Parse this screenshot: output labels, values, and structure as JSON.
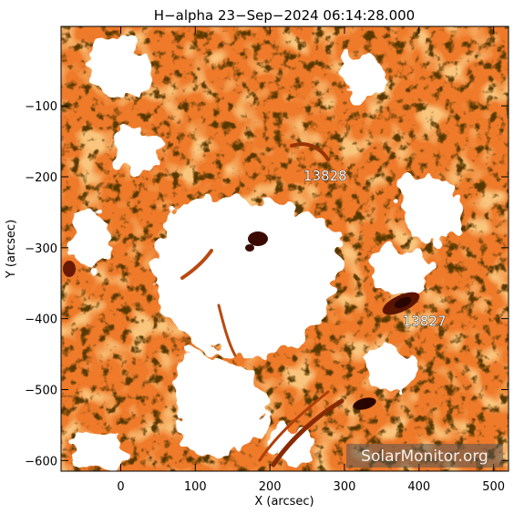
{
  "title": "H−alpha 23−Sep−2024 06:14:28.000",
  "axes": {
    "xlabel": "X (arcsec)",
    "ylabel": "Y (arcsec)",
    "xlim": [
      -80,
      520
    ],
    "ylim": [
      -615,
      12
    ],
    "xticks": [
      "0",
      "100",
      "200",
      "300",
      "400",
      "500"
    ],
    "yticks": [
      "−100",
      "−200",
      "−300",
      "−400",
      "−500",
      "−600"
    ]
  },
  "regions": [
    {
      "label": "13828",
      "x": 245,
      "y": -205
    },
    {
      "label": "13827",
      "x": 378,
      "y": -410
    }
  ],
  "watermark": "SolarMonitor.org",
  "colors": {
    "background": "#ffffff",
    "chromosphere": "#ee7a2a",
    "chromosphere_dark": "#c24e12",
    "sunspot": "#3a0a00",
    "dark_fibril": "#1a0800",
    "plage": "#ffffff"
  }
}
